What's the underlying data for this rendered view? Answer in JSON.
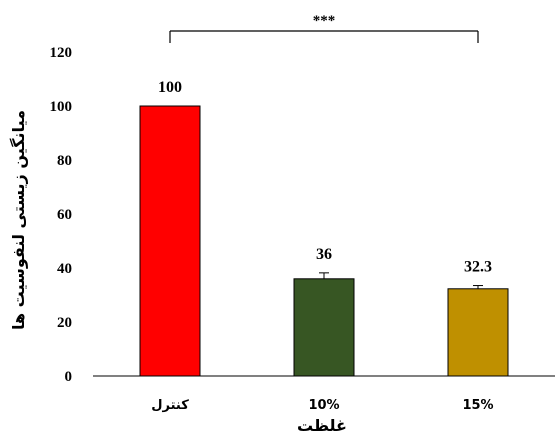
{
  "chart_data": {
    "type": "bar",
    "title": "",
    "xlabel": "غلظت",
    "ylabel": "میانگین زیستی لنفوسیت ها",
    "categories": [
      "کنترل",
      "10%",
      "15%"
    ],
    "values": [
      100,
      36,
      32.3
    ],
    "value_labels": [
      "100",
      "36",
      "32.3"
    ],
    "error": [
      0,
      2.2,
      1.2
    ],
    "colors": [
      "#ff0000",
      "#375623",
      "#bf9000"
    ],
    "ylim": [
      0,
      120
    ],
    "yticks": [
      0,
      20,
      40,
      60,
      80,
      100,
      120
    ],
    "grid": false,
    "legend": "none",
    "significance": {
      "label": "***",
      "from_category": 0,
      "to_category": 2
    }
  }
}
